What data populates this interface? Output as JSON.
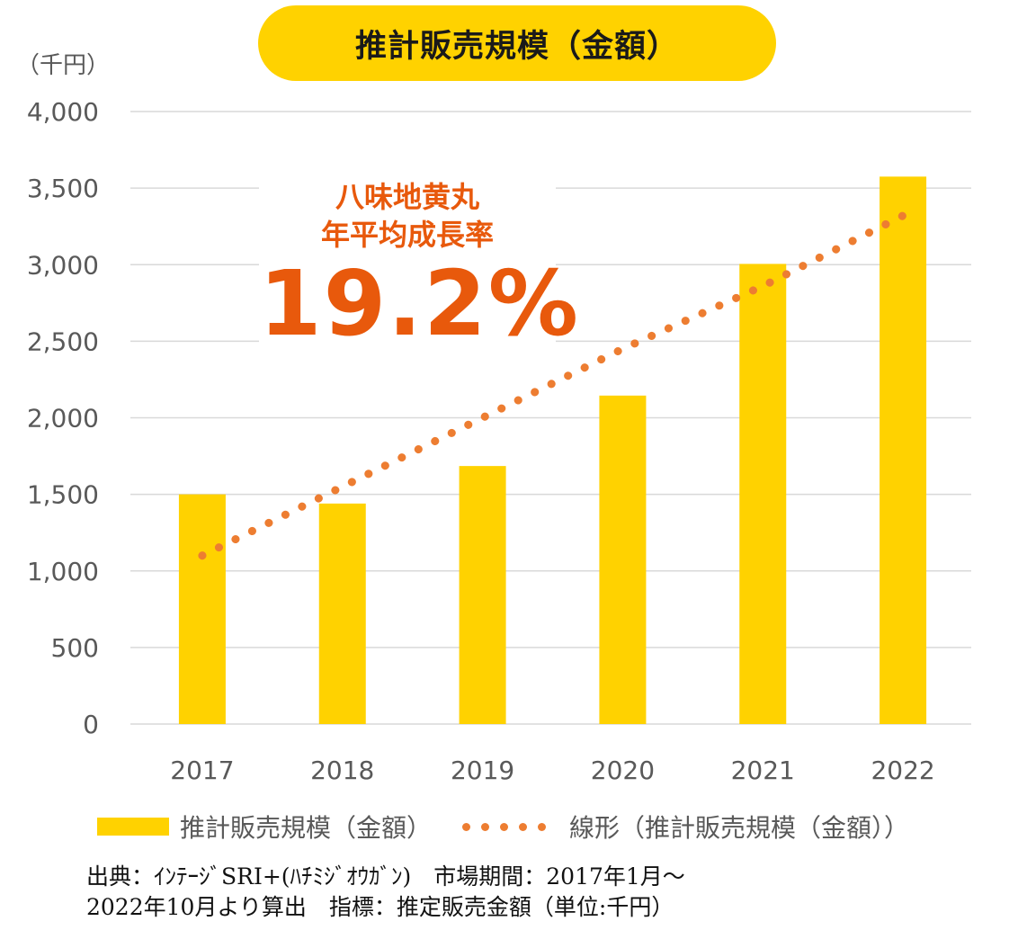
{
  "title": "推計販売規模（金額）",
  "unit_label": "（千円）",
  "annotation": {
    "line1": "八味地黄丸",
    "line2": "年平均成長率",
    "value": "19.2%"
  },
  "legend": {
    "bar_label": "推計販売規模（金額）",
    "trend_label": "線形（推計販売規模（金額））"
  },
  "source": {
    "line1": "出典：ｲﾝﾃｰｼﾞSRI+(ﾊﾁﾐｼﾞｵｳｶﾞﾝ)　市場期間：2017年1月～",
    "line2": "2022年10月より算出　指標：推定販売金額（単位:千円）"
  },
  "colors": {
    "bar": "#ffd200",
    "trend": "#ed7d31",
    "grid": "#d9d9d9",
    "annotation": "#e8590c"
  },
  "chart_data": {
    "type": "bar",
    "title": "推計販売規模（金額）",
    "ylabel": "（千円）",
    "xlabel": "",
    "categories": [
      "2017",
      "2018",
      "2019",
      "2020",
      "2021",
      "2022"
    ],
    "series": [
      {
        "name": "推計販売規模（金額）",
        "values": [
          1500,
          1440,
          1685,
          2145,
          3005,
          3575
        ]
      },
      {
        "name": "線形（推計販売規模（金額））",
        "type": "trendline-dotted",
        "values": [
          1100,
          1550,
          2000,
          2450,
          2860,
          3320
        ]
      }
    ],
    "ylim": [
      0,
      4000
    ],
    "yticks": [
      0,
      500,
      1000,
      1500,
      2000,
      2500,
      3000,
      3500,
      4000
    ],
    "ytick_labels": [
      "0",
      "500",
      "1,000",
      "1,500",
      "2,000",
      "2,500",
      "3,000",
      "3,500",
      "4,000"
    ],
    "grid": true,
    "legend_position": "bottom"
  }
}
